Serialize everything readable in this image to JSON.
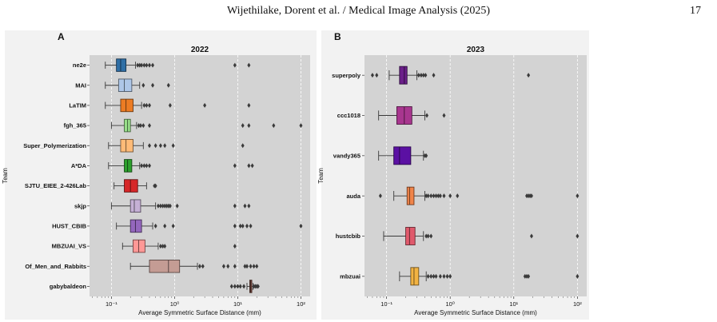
{
  "page": {
    "header_text": "Wijethilake, Dorent et al. / Medical Image Analysis (2025)",
    "page_number": "17"
  },
  "chart_data": [
    {
      "type": "box",
      "panel_label": "A",
      "title": "2022",
      "xlabel": "Average Symmetric Surface Distance (mm)",
      "ylabel": "Team",
      "xscale": "log",
      "xlim": [
        0.045,
        140
      ],
      "xticks": [
        0.1,
        1,
        10,
        100
      ],
      "xtick_labels": [
        "10⁻¹",
        "10⁰",
        "10¹",
        "10²"
      ],
      "grid": "vertical dashed at x ticks",
      "categories": [
        "ne2e",
        "MAI",
        "LaTIM",
        "fgh_365",
        "Super_Polymerization",
        "A*DA",
        "SJTU_EIEE_2-426Lab",
        "skjp",
        "HUST_CBIB",
        "MBZUAI_VS",
        "Of_Men_and_Rabbits",
        "gabybaldeon"
      ],
      "series": [
        {
          "color": "#2f6fa6",
          "whislo": 0.08,
          "q1": 0.12,
          "med": 0.14,
          "q3": 0.17,
          "whishi": 0.24,
          "fliers": [
            0.26,
            0.28,
            0.3,
            0.33,
            0.36,
            0.4,
            0.45,
            9.0,
            15.0
          ]
        },
        {
          "color": "#aec7e8",
          "whislo": 0.08,
          "q1": 0.13,
          "med": 0.16,
          "q3": 0.21,
          "whishi": 0.28,
          "fliers": [
            0.32,
            0.45,
            0.8
          ]
        },
        {
          "color": "#ec7c24",
          "whislo": 0.08,
          "q1": 0.14,
          "med": 0.17,
          "q3": 0.22,
          "whishi": 0.3,
          "fliers": [
            0.33,
            0.36,
            0.4,
            0.85,
            3.0,
            15.0
          ]
        },
        {
          "color": "#98df8a",
          "whislo": 0.1,
          "q1": 0.16,
          "med": 0.18,
          "q3": 0.2,
          "whishi": 0.25,
          "fliers": [
            0.27,
            0.29,
            0.32,
            0.4,
            12.0,
            15.0,
            37.0,
            100.0
          ]
        },
        {
          "color": "#ffbb78",
          "whislo": 0.09,
          "q1": 0.14,
          "med": 0.17,
          "q3": 0.22,
          "whishi": 0.32,
          "fliers": [
            0.4,
            0.5,
            0.6,
            0.7,
            0.95,
            12.0
          ]
        },
        {
          "color": "#2ca02c",
          "whislo": 0.09,
          "q1": 0.16,
          "med": 0.18,
          "q3": 0.21,
          "whishi": 0.28,
          "fliers": [
            0.3,
            0.33,
            0.36,
            0.4,
            9.0,
            15.0,
            17.0
          ]
        },
        {
          "color": "#d62728",
          "whislo": 0.11,
          "q1": 0.16,
          "med": 0.2,
          "q3": 0.26,
          "whishi": 0.36,
          "fliers": [
            0.48,
            0.5
          ]
        },
        {
          "color": "#c5b0d5",
          "whislo": 0.1,
          "q1": 0.2,
          "med": 0.23,
          "q3": 0.29,
          "whishi": 0.5,
          "fliers": [
            0.55,
            0.6,
            0.65,
            0.7,
            0.75,
            0.8,
            0.85,
            1.1,
            9.0,
            13.0,
            15.0
          ]
        },
        {
          "color": "#9467bd",
          "whislo": 0.12,
          "q1": 0.2,
          "med": 0.24,
          "q3": 0.3,
          "whishi": 0.45,
          "fliers": [
            0.5,
            0.7,
            0.95,
            9.0,
            11.0,
            12.0,
            14.0,
            16.0,
            100.0
          ]
        },
        {
          "color": "#ff9896",
          "whislo": 0.15,
          "q1": 0.22,
          "med": 0.27,
          "q3": 0.34,
          "whishi": 0.55,
          "fliers": [
            0.6,
            0.65,
            0.7,
            9.0
          ]
        },
        {
          "color": "#c49c94",
          "whislo": 0.2,
          "q1": 0.4,
          "med": 0.8,
          "q3": 1.2,
          "whishi": 2.3,
          "fliers": [
            2.5,
            2.8,
            6.0,
            7.0,
            9.0,
            13.0,
            14.0,
            16.0,
            18.0,
            20.0
          ]
        },
        {
          "color": "#8c564b",
          "whislo": 14.0,
          "q1": 15.5,
          "med": 16.0,
          "q3": 16.7,
          "whishi": 17.5,
          "fliers": [
            8.0,
            9.0,
            10.0,
            11.0,
            12.5,
            18.0,
            19.0,
            20.0,
            21.0
          ]
        }
      ]
    },
    {
      "type": "box",
      "panel_label": "B",
      "title": "2023",
      "xlabel": "Average Symmetric Surface Distance (mm)",
      "ylabel": "Team",
      "xscale": "log",
      "xlim": [
        0.045,
        140
      ],
      "xticks": [
        0.1,
        1,
        10,
        100
      ],
      "xtick_labels": [
        "10⁻¹",
        "10⁰",
        "10¹",
        "10²"
      ],
      "grid": "vertical dashed at x ticks",
      "categories": [
        "superpoly",
        "ccc1018",
        "vandy365",
        "auda",
        "hustcbib",
        "mbzuai"
      ],
      "series": [
        {
          "color": "#6b1f8a",
          "whislo": 0.11,
          "q1": 0.16,
          "med": 0.19,
          "q3": 0.21,
          "whishi": 0.3,
          "fliers": [
            0.06,
            0.07,
            0.32,
            0.35,
            0.38,
            0.41,
            0.55,
            17.0
          ]
        },
        {
          "color": "#a8368f",
          "whislo": 0.075,
          "q1": 0.145,
          "med": 0.19,
          "q3": 0.25,
          "whishi": 0.4,
          "fliers": [
            0.43,
            0.8
          ]
        },
        {
          "color": "#5b10a3",
          "whislo": 0.075,
          "q1": 0.13,
          "med": 0.16,
          "q3": 0.24,
          "whishi": 0.38,
          "fliers": [
            0.4,
            0.42
          ]
        },
        {
          "color": "#f0844a",
          "whislo": 0.13,
          "q1": 0.21,
          "med": 0.23,
          "q3": 0.27,
          "whishi": 0.4,
          "fliers": [
            0.08,
            0.42,
            0.45,
            0.5,
            0.55,
            0.6,
            0.65,
            0.7,
            0.8,
            1.0,
            1.3,
            16.0,
            17.0,
            18.0,
            19.0,
            100.0
          ]
        },
        {
          "color": "#e05a6c",
          "whislo": 0.09,
          "q1": 0.2,
          "med": 0.23,
          "q3": 0.28,
          "whishi": 0.38,
          "fliers": [
            0.42,
            0.45,
            0.5,
            19.0,
            100.0
          ]
        },
        {
          "color": "#f2b342",
          "whislo": 0.16,
          "q1": 0.24,
          "med": 0.27,
          "q3": 0.32,
          "whishi": 0.42,
          "fliers": [
            0.45,
            0.5,
            0.55,
            0.6,
            0.7,
            0.8,
            0.9,
            1.0,
            15.0,
            16.0,
            17.0,
            100.0
          ]
        }
      ]
    }
  ]
}
